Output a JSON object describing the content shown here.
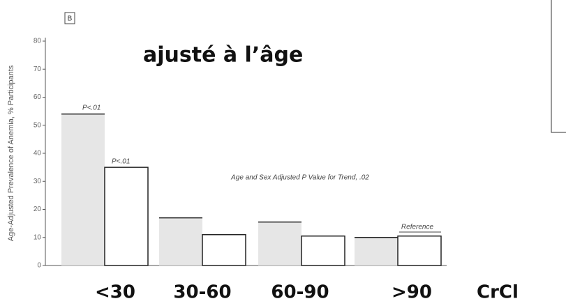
{
  "chart_data": {
    "type": "bar",
    "panel": "B",
    "title": "ajusté à l’âge",
    "ylabel": "Age-Adjusted Prevalence of Anemia, % Participants",
    "xlabel": "CrCl",
    "categories": [
      "<30",
      "30-60",
      "60-90",
      ">90"
    ],
    "series": [
      {
        "color": "#e6e6e6",
        "values": [
          54,
          17,
          15.5,
          10
        ]
      },
      {
        "color": "#ffffff",
        "values": [
          35,
          11,
          10.5,
          10.5
        ]
      }
    ],
    "annotations": [
      "P<.01",
      "P<.01",
      "Age and Sex Adjusted P Value for Trend, .02",
      "Reference"
    ],
    "ylim": [
      0,
      80
    ],
    "yticks": [
      0,
      10,
      20,
      30,
      40,
      50,
      60,
      70,
      80
    ]
  }
}
